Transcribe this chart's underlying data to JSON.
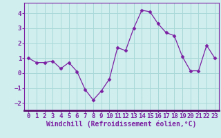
{
  "x": [
    0,
    1,
    2,
    3,
    4,
    5,
    6,
    7,
    8,
    9,
    10,
    11,
    12,
    13,
    14,
    15,
    16,
    17,
    18,
    19,
    20,
    21,
    22,
    23
  ],
  "y": [
    1.0,
    0.7,
    0.7,
    0.8,
    0.3,
    0.7,
    0.1,
    -1.1,
    -1.8,
    -1.2,
    -0.4,
    1.7,
    1.5,
    3.0,
    4.2,
    4.1,
    3.3,
    2.7,
    2.5,
    1.1,
    0.15,
    0.15,
    1.85,
    1.0
  ],
  "line_color": "#7b1fa2",
  "marker": "D",
  "marker_size": 2.5,
  "bg_color": "#d0eeee",
  "grid_color": "#a8d8d8",
  "xlabel": "Windchill (Refroidissement éolien,°C)",
  "xlabel_fontsize": 7.0,
  "tick_fontsize": 6.5,
  "ylim": [
    -2.5,
    4.7
  ],
  "yticks": [
    -2,
    -1,
    0,
    1,
    2,
    3,
    4
  ],
  "xticks": [
    0,
    1,
    2,
    3,
    4,
    5,
    6,
    7,
    8,
    9,
    10,
    11,
    12,
    13,
    14,
    15,
    16,
    17,
    18,
    19,
    20,
    21,
    22,
    23
  ],
  "spine_color": "#7b1fa2",
  "bottom_bar_color": "#5b1070"
}
